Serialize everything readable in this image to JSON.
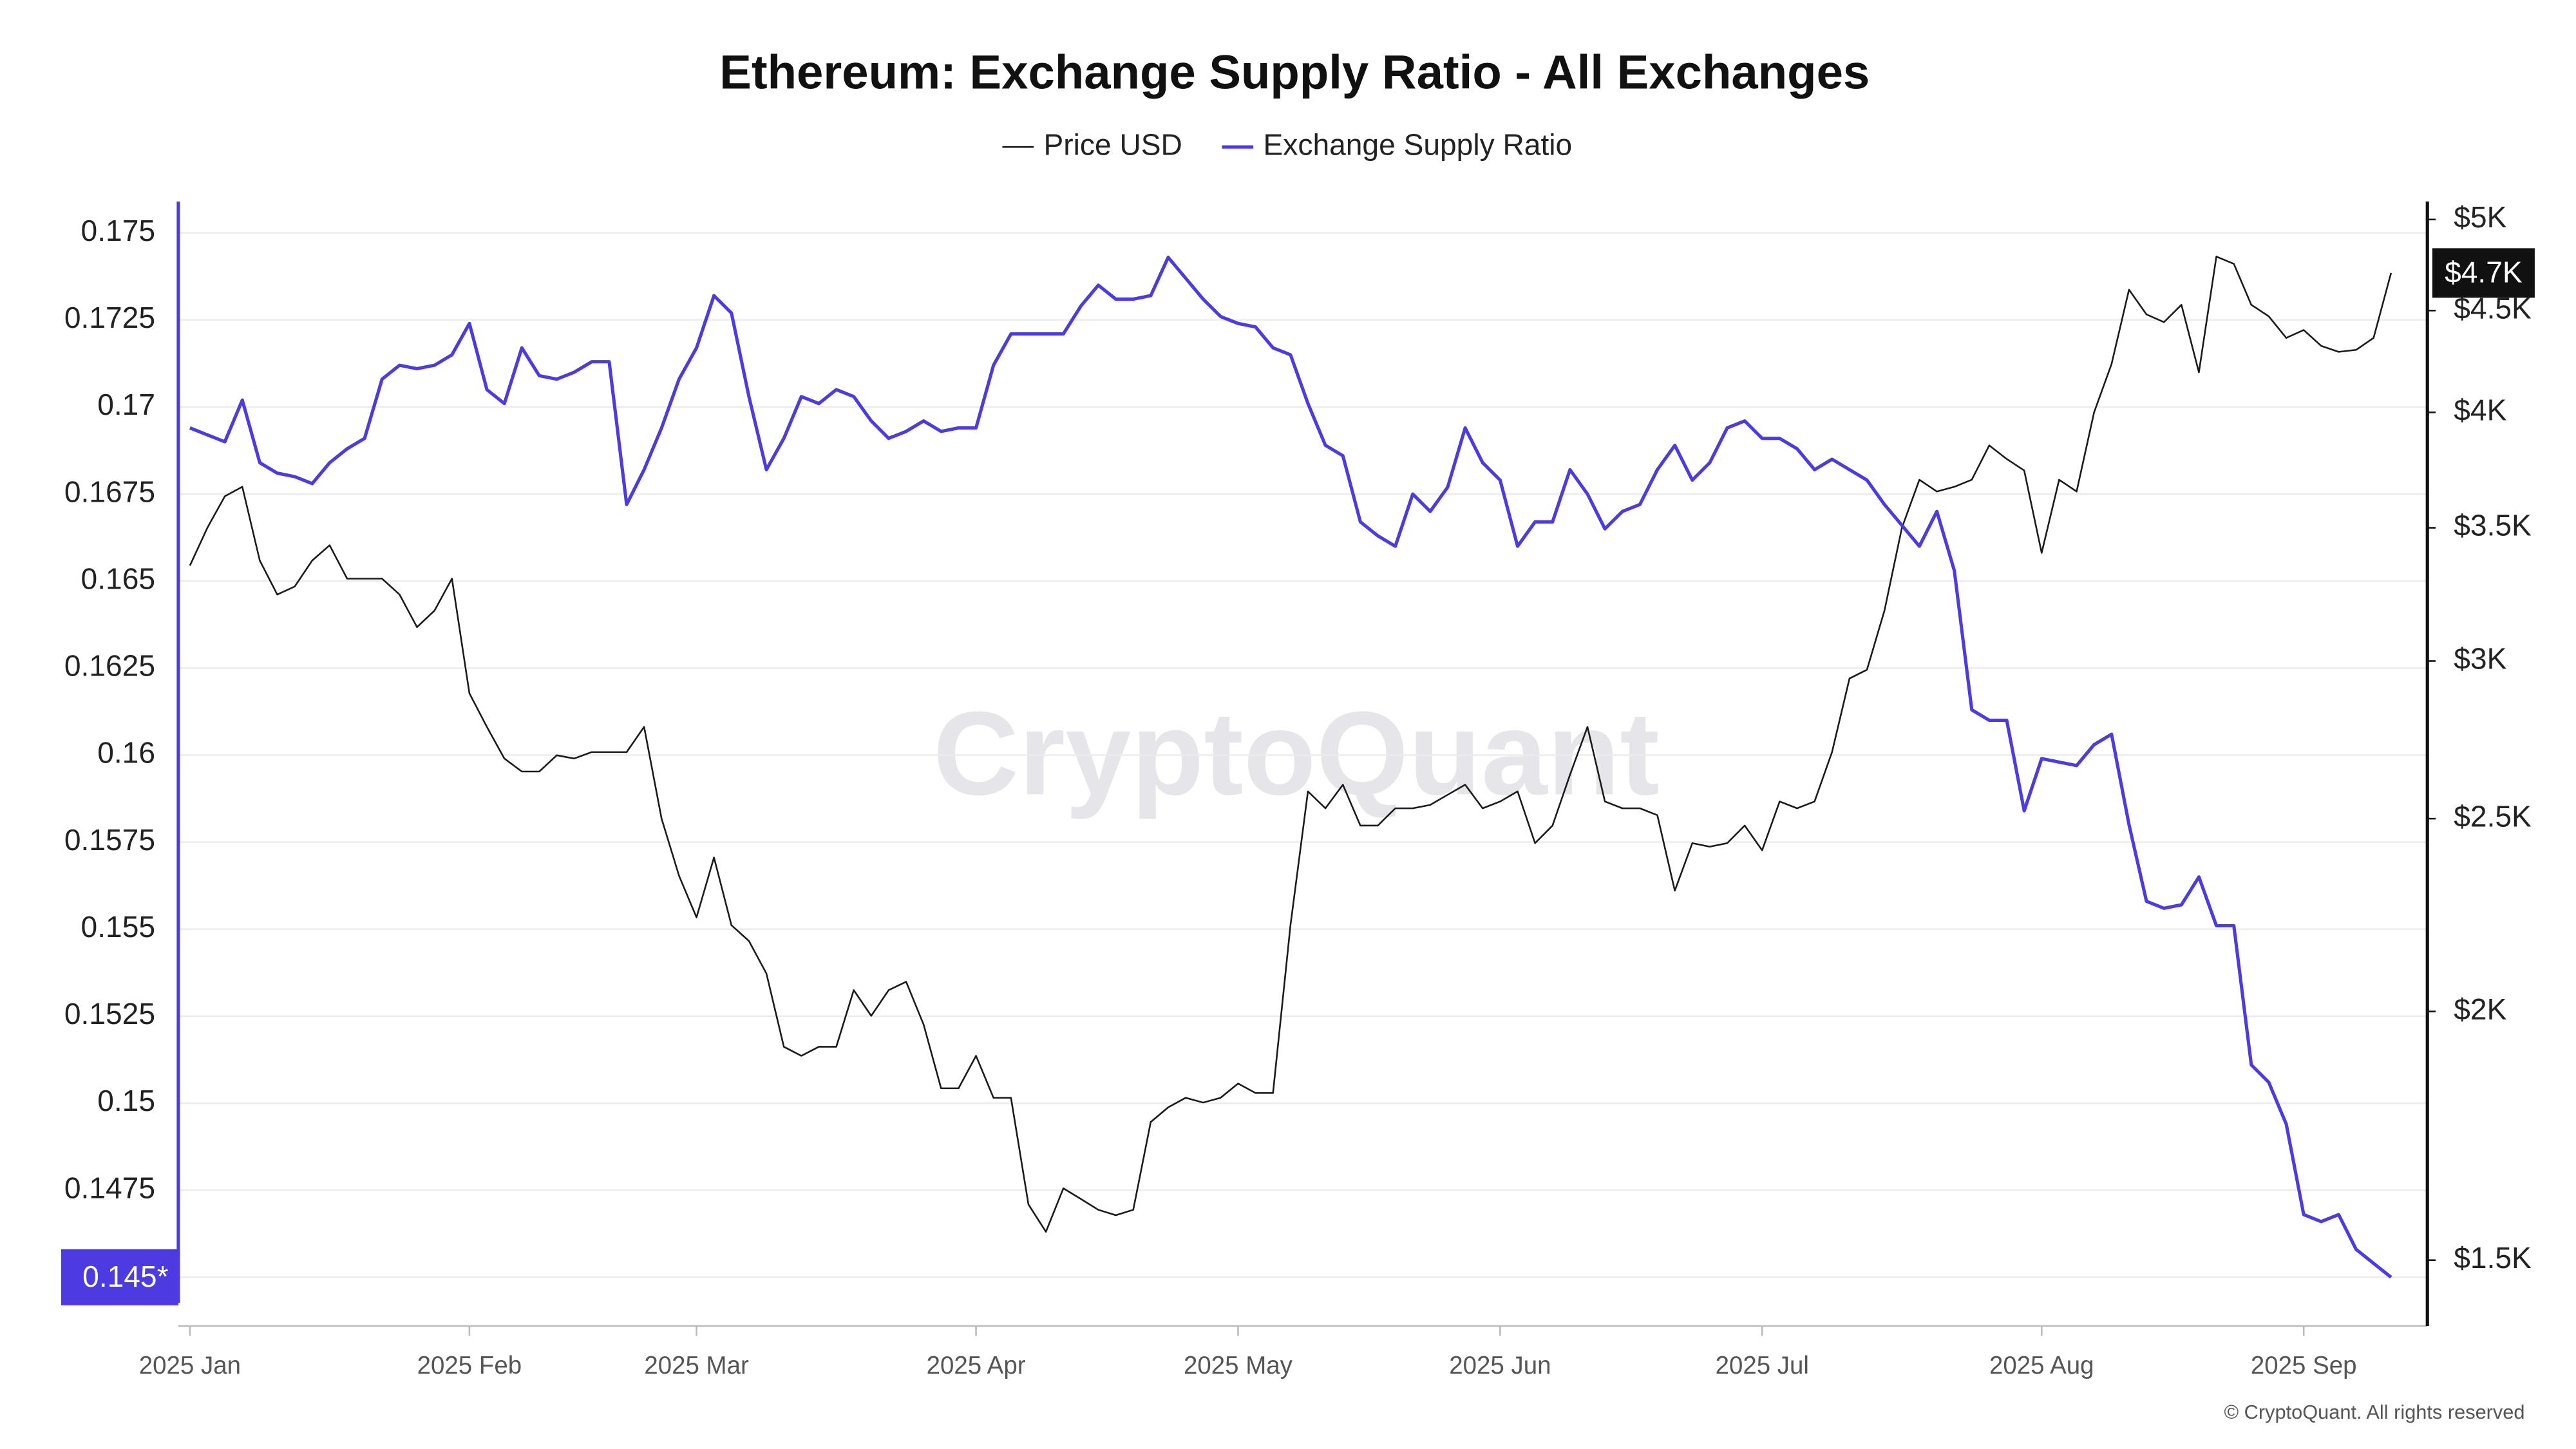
{
  "chart_data": {
    "type": "line",
    "title": "Ethereum: Exchange Supply Ratio - All Exchanges",
    "watermark": "CryptoQuant",
    "copyright": "© CryptoQuant. All rights reserved",
    "categories": [
      "2025 Jan",
      null,
      null,
      null,
      null,
      null,
      null,
      null,
      null,
      null,
      null,
      null,
      null,
      null,
      null,
      null,
      "2025 Feb",
      null,
      null,
      null,
      null,
      null,
      null,
      null,
      null,
      null,
      null,
      null,
      null,
      "2025 Mar",
      null,
      null,
      null,
      null,
      null,
      null,
      null,
      null,
      null,
      null,
      null,
      null,
      null,
      null,
      null,
      "2025 Apr",
      null,
      null,
      null,
      null,
      null,
      null,
      null,
      null,
      null,
      null,
      null,
      null,
      null,
      null,
      "2025 May",
      null,
      null,
      null,
      null,
      null,
      null,
      null,
      null,
      null,
      null,
      null,
      null,
      null,
      null,
      "2025 Jun",
      null,
      null,
      null,
      null,
      null,
      null,
      null,
      null,
      null,
      null,
      null,
      null,
      null,
      null,
      "2025 Jul",
      null,
      null,
      null,
      null,
      null,
      null,
      null,
      null,
      null,
      null,
      null,
      null,
      null,
      null,
      null,
      "2025 Aug",
      null,
      null,
      null,
      null,
      null,
      null,
      null,
      null,
      null,
      null,
      null,
      null,
      null,
      null,
      "2025 Sep",
      null,
      null,
      null,
      null,
      null
    ],
    "series": [
      {
        "name": "Price USD",
        "color": "#1a1a1a",
        "axis": "y2",
        "values": [
          3350,
          3500,
          3630,
          3670,
          3370,
          3240,
          3270,
          3370,
          3430,
          3300,
          3300,
          3300,
          3240,
          3120,
          3180,
          3300,
          2890,
          2780,
          2680,
          2640,
          2640,
          2690,
          2680,
          2700,
          2700,
          2700,
          2780,
          2500,
          2340,
          2230,
          2390,
          2210,
          2170,
          2090,
          1920,
          1900,
          1920,
          1920,
          2050,
          1990,
          2050,
          2070,
          1970,
          1830,
          1830,
          1900,
          1810,
          1810,
          1600,
          1550,
          1630,
          1610,
          1590,
          1580,
          1590,
          1760,
          1790,
          1810,
          1800,
          1810,
          1840,
          1820,
          1820,
          2210,
          2580,
          2530,
          2600,
          2480,
          2480,
          2530,
          2530,
          2540,
          2570,
          2600,
          2530,
          2550,
          2580,
          2430,
          2480,
          2630,
          2780,
          2550,
          2530,
          2530,
          2510,
          2300,
          2430,
          2420,
          2430,
          2480,
          2410,
          2550,
          2530,
          2550,
          2700,
          2940,
          2970,
          3180,
          3500,
          3700,
          3650,
          3670,
          3700,
          3850,
          3790,
          3740,
          3400,
          3700,
          3650,
          4000,
          4230,
          4610,
          4480,
          4440,
          4530,
          4190,
          4790,
          4750,
          4530,
          4470,
          4360,
          4400,
          4320,
          4290,
          4300,
          4360,
          4700
        ],
        "value_labels": [
          null,
          null,
          null,
          null,
          null,
          null,
          null,
          null,
          null,
          null,
          null,
          null,
          null,
          null,
          null,
          null,
          null,
          null,
          null,
          null,
          null,
          null,
          null,
          null,
          null,
          null,
          null,
          null,
          null,
          null,
          null,
          null,
          null,
          null,
          null,
          null,
          null,
          null,
          null,
          null,
          null,
          null,
          null,
          null,
          null,
          null,
          null,
          null,
          null,
          null,
          null,
          null,
          null,
          null,
          null,
          null,
          null,
          null,
          null,
          null,
          null,
          null,
          null,
          null,
          null,
          null,
          null,
          null,
          null,
          null,
          null,
          null,
          null,
          null,
          null,
          null,
          null,
          null,
          null,
          null,
          null,
          null,
          null,
          null,
          null,
          null,
          null,
          null,
          null,
          null,
          null,
          null,
          null,
          null,
          null,
          null,
          null,
          null,
          null,
          null,
          null,
          null,
          null,
          null,
          null,
          null,
          null,
          null,
          null,
          null,
          null,
          null,
          null,
          null,
          null,
          null,
          null,
          null,
          null,
          null,
          null,
          null,
          null,
          null,
          null,
          null,
          "$4.7K"
        ]
      },
      {
        "name": "Exchange Supply Ratio",
        "color": "#4b3be0",
        "axis": "y",
        "values": [
          0.1694,
          0.1692,
          0.169,
          0.1702,
          0.1684,
          0.1681,
          0.168,
          0.1678,
          0.1684,
          0.1688,
          0.1691,
          0.1708,
          0.1712,
          0.1711,
          0.1712,
          0.1715,
          0.1724,
          0.1705,
          0.1701,
          0.1717,
          0.1709,
          0.1708,
          0.171,
          0.1713,
          0.1713,
          0.1672,
          0.1682,
          0.1694,
          0.1708,
          0.1717,
          0.1732,
          0.1727,
          0.1703,
          0.1682,
          0.1691,
          0.1703,
          0.1701,
          0.1705,
          0.1703,
          0.1696,
          0.1691,
          0.1693,
          0.1696,
          0.1693,
          0.1694,
          0.1694,
          0.1712,
          0.1721,
          0.1721,
          0.1721,
          0.1721,
          0.1729,
          0.1735,
          0.1731,
          0.1731,
          0.1732,
          0.1743,
          0.1737,
          0.1731,
          0.1726,
          0.1724,
          0.1723,
          0.1717,
          0.1715,
          0.1701,
          0.1689,
          0.1686,
          0.1667,
          0.1663,
          0.166,
          0.1675,
          0.167,
          0.1677,
          0.1694,
          0.1684,
          0.1679,
          0.166,
          0.1667,
          0.1667,
          0.1682,
          0.1675,
          0.1665,
          0.167,
          0.1672,
          0.1682,
          0.1689,
          0.1679,
          0.1684,
          0.1694,
          0.1696,
          0.1691,
          0.1691,
          0.1688,
          0.1682,
          0.1685,
          0.1682,
          0.1679,
          0.1672,
          0.1666,
          0.166,
          0.167,
          0.1653,
          0.1613,
          0.161,
          0.161,
          0.1584,
          0.1599,
          0.1598,
          0.1597,
          0.1603,
          0.1606,
          0.158,
          0.1558,
          0.1556,
          0.1557,
          0.1565,
          0.1551,
          0.1551,
          0.1511,
          0.1506,
          0.1494,
          0.1468,
          0.1466,
          0.1468,
          0.1458,
          0.1454,
          0.145
        ],
        "value_labels": [
          null,
          null,
          null,
          null,
          null,
          null,
          null,
          null,
          null,
          null,
          null,
          null,
          null,
          null,
          null,
          null,
          null,
          null,
          null,
          null,
          null,
          null,
          null,
          null,
          null,
          null,
          null,
          null,
          null,
          null,
          null,
          null,
          null,
          null,
          null,
          null,
          null,
          null,
          null,
          null,
          null,
          null,
          null,
          null,
          null,
          null,
          null,
          null,
          null,
          null,
          null,
          null,
          null,
          null,
          null,
          null,
          null,
          null,
          null,
          null,
          null,
          null,
          null,
          null,
          null,
          null,
          null,
          null,
          null,
          null,
          null,
          null,
          null,
          null,
          null,
          null,
          null,
          null,
          null,
          null,
          null,
          null,
          null,
          null,
          null,
          null,
          null,
          null,
          null,
          null,
          null,
          null,
          null,
          null,
          null,
          null,
          null,
          null,
          null,
          null,
          null,
          null,
          null,
          null,
          null,
          null,
          null,
          null,
          null,
          null,
          null,
          null,
          null,
          null,
          null,
          null,
          null,
          null,
          null,
          null,
          null,
          null,
          null,
          null,
          null,
          null,
          "0.145*"
        ]
      }
    ],
    "ylim": [
      0.1436,
      0.176
    ],
    "yticks": [
      0.145,
      0.1475,
      0.15,
      0.1525,
      0.155,
      0.1575,
      0.16,
      0.1625,
      0.165,
      0.1675,
      0.17,
      0.1725,
      0.175
    ],
    "y2lim": [
      1390,
      5125
    ],
    "y2scale": "log",
    "y2ticks": [
      {
        "value": 1500,
        "label": "$1.5K"
      },
      {
        "value": 2000,
        "label": "$2K"
      },
      {
        "value": 2500,
        "label": "$2.5K"
      },
      {
        "value": 3000,
        "label": "$3K"
      },
      {
        "value": 3500,
        "label": "$3.5K"
      },
      {
        "value": 4000,
        "label": "$4K"
      },
      {
        "value": 4500,
        "label": "$4.5K"
      },
      {
        "value": 5000,
        "label": "$5K"
      }
    ],
    "grid": true
  }
}
